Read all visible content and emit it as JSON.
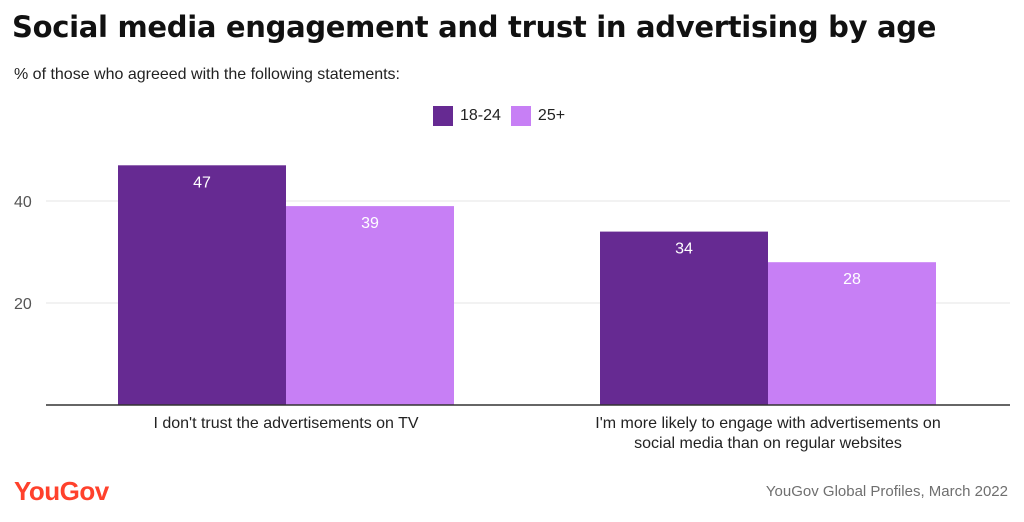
{
  "title": "Social media engagement and trust in advertising by age",
  "subtitle": "% of those who agreeed with the following statements:",
  "legend": [
    {
      "label": "18-24",
      "color": "#662a92"
    },
    {
      "label": "25+",
      "color": "#c77ff5"
    }
  ],
  "brand": "YouGov",
  "source": "YouGov Global Profiles, March 2022",
  "colors": {
    "series_18_24": "#662a92",
    "series_25_plus": "#c77ff5",
    "brand": "#ff412c",
    "grid": "#e6e6e6",
    "axis": "#333333"
  },
  "chart_data": {
    "type": "bar",
    "categories": [
      [
        "I don't trust the advertisements on TV"
      ],
      [
        "I'm more likely to engage with advertisements on",
        "social media than on regular websites"
      ]
    ],
    "series": [
      {
        "name": "18-24",
        "values": [
          47,
          34
        ]
      },
      {
        "name": "25+",
        "values": [
          39,
          28
        ]
      }
    ],
    "yticks": [
      20,
      40
    ],
    "ylim": [
      0,
      50
    ],
    "grid": true,
    "legend_position": "top-center",
    "data_labels": true
  }
}
